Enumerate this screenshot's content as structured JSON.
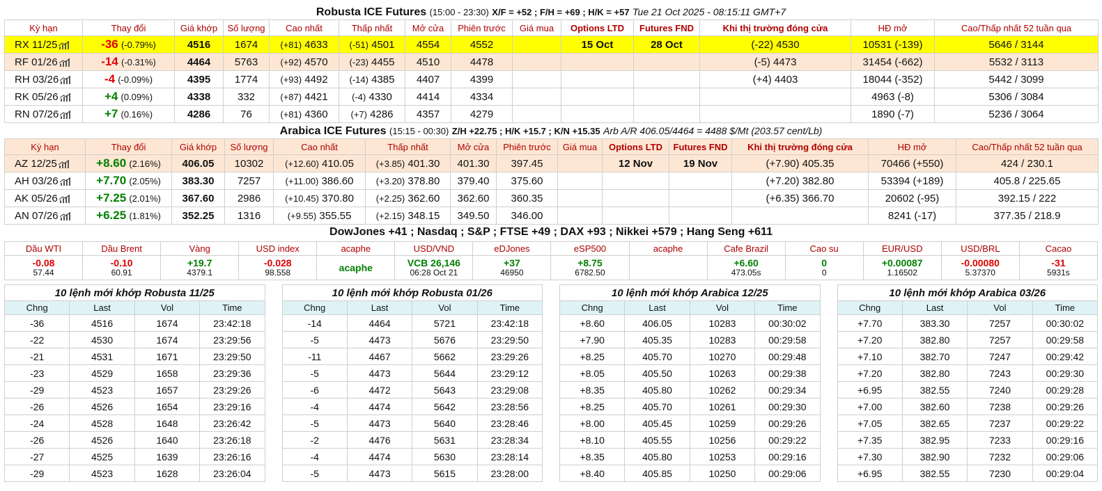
{
  "robusta": {
    "title": "Robusta ICE Futures",
    "session": "(15:00 - 23:30)",
    "spreads": "X/F = +52 ; F/H = +69 ; H/K = +57",
    "timestamp": "Tue 21 Oct 2025 - 08:15:11 GMT+7",
    "headers": [
      "Kỳ hạn",
      "Thay đổi",
      "Giá khớp",
      "Số lượng",
      "Cao nhất",
      "Thấp nhất",
      "Mở cửa",
      "Phiên trước",
      "Giá mua",
      "Options LTD",
      "Futures FND",
      "Khi thị trường đóng cửa",
      "HĐ mở",
      "Cao/Thấp nhất 52 tuần qua"
    ],
    "rows": [
      {
        "code": "RX 11/25",
        "chg": "-36",
        "pct": "(-0.79%)",
        "last": "4516",
        "vol": "1674",
        "high_d": "(+81)",
        "high": "4633",
        "low_d": "(-51)",
        "low": "4501",
        "open": "4554",
        "prev": "4552",
        "bid": "",
        "ltd": "15 Oct",
        "fnd": "28 Oct",
        "close": "(-22) 4530",
        "oi": "10531 (-139)",
        "range": "5646 / 3144",
        "dir": "neg"
      },
      {
        "code": "RF 01/26",
        "chg": "-14",
        "pct": "(-0.31%)",
        "last": "4464",
        "vol": "5763",
        "high_d": "(+92)",
        "high": "4570",
        "low_d": "(-23)",
        "low": "4455",
        "open": "4510",
        "prev": "4478",
        "bid": "",
        "ltd": "",
        "fnd": "",
        "close": "(-5) 4473",
        "oi": "31454 (-662)",
        "range": "5532 / 3113",
        "dir": "neg"
      },
      {
        "code": "RH 03/26",
        "chg": "-4",
        "pct": "(-0.09%)",
        "last": "4395",
        "vol": "1774",
        "high_d": "(+93)",
        "high": "4492",
        "low_d": "(-14)",
        "low": "4385",
        "open": "4407",
        "prev": "4399",
        "bid": "",
        "ltd": "",
        "fnd": "",
        "close": "(+4) 4403",
        "oi": "18044 (-352)",
        "range": "5442 / 3099",
        "dir": "neg"
      },
      {
        "code": "RK 05/26",
        "chg": "+4",
        "pct": "(0.09%)",
        "last": "4338",
        "vol": "332",
        "high_d": "(+87)",
        "high": "4421",
        "low_d": "(-4)",
        "low": "4330",
        "open": "4414",
        "prev": "4334",
        "bid": "",
        "ltd": "",
        "fnd": "",
        "close": "",
        "oi": "4963 (-8)",
        "range": "5306 / 3084",
        "dir": "pos"
      },
      {
        "code": "RN 07/26",
        "chg": "+7",
        "pct": "(0.16%)",
        "last": "4286",
        "vol": "76",
        "high_d": "(+81)",
        "high": "4360",
        "low_d": "(+7)",
        "low": "4286",
        "open": "4357",
        "prev": "4279",
        "bid": "",
        "ltd": "",
        "fnd": "",
        "close": "",
        "oi": "1890 (-7)",
        "range": "5236 / 3064",
        "dir": "pos"
      }
    ]
  },
  "arabica": {
    "title": "Arabica ICE Futures",
    "session": "(15:15 - 00:30)",
    "spreads": "Z/H +22.75 ; H/K +15.7 ; K/N +15.35",
    "arb": "Arb A/R 406.05/4464 = 4488 $/Mt (203.57 cent/Lb)",
    "headers": [
      "Kỳ hạn",
      "Thay đổi",
      "Giá khớp",
      "Số lượng",
      "Cao nhất",
      "Thấp nhất",
      "Mở cửa",
      "Phiên trước",
      "Giá mua",
      "Options LTD",
      "Futures FND",
      "Khi thị trường đóng cửa",
      "HĐ mở",
      "Cao/Thấp nhất 52 tuần qua"
    ],
    "rows": [
      {
        "code": "AZ 12/25",
        "chg": "+8.60",
        "pct": "(2.16%)",
        "last": "406.05",
        "vol": "10302",
        "high_d": "(+12.60)",
        "high": "410.05",
        "low_d": "(+3.85)",
        "low": "401.30",
        "open": "401.30",
        "prev": "397.45",
        "bid": "",
        "ltd": "12 Nov",
        "fnd": "19 Nov",
        "close": "(+7.90) 405.35",
        "oi": "70466 (+550)",
        "range": "424 / 230.1"
      },
      {
        "code": "AH 03/26",
        "chg": "+7.70",
        "pct": "(2.05%)",
        "last": "383.30",
        "vol": "7257",
        "high_d": "(+11.00)",
        "high": "386.60",
        "low_d": "(+3.20)",
        "low": "378.80",
        "open": "379.40",
        "prev": "375.60",
        "bid": "",
        "ltd": "",
        "fnd": "",
        "close": "(+7.20) 382.80",
        "oi": "53394 (+189)",
        "range": "405.8 / 225.65"
      },
      {
        "code": "AK 05/26",
        "chg": "+7.25",
        "pct": "(2.01%)",
        "last": "367.60",
        "vol": "2986",
        "high_d": "(+10.45)",
        "high": "370.80",
        "low_d": "(+2.25)",
        "low": "362.60",
        "open": "362.60",
        "prev": "360.35",
        "bid": "",
        "ltd": "",
        "fnd": "",
        "close": "(+6.35) 366.70",
        "oi": "20602 (-95)",
        "range": "392.15 / 222"
      },
      {
        "code": "AN 07/26",
        "chg": "+6.25",
        "pct": "(1.81%)",
        "last": "352.25",
        "vol": "1316",
        "high_d": "(+9.55)",
        "high": "355.55",
        "low_d": "(+2.15)",
        "low": "348.15",
        "open": "349.50",
        "prev": "346.00",
        "bid": "",
        "ltd": "",
        "fnd": "",
        "close": "",
        "oi": "8241 (-17)",
        "range": "377.35 / 218.9"
      }
    ]
  },
  "indices_line": "DowJones +41 ; Nasdaq ; S&P ; FTSE +49 ; DAX +93 ; Nikkei +579 ; Hang Seng +611",
  "markets": [
    {
      "name": "Dầu WTI",
      "v1": "-0.08",
      "v2": "57.44",
      "c": "red"
    },
    {
      "name": "Dầu Brent",
      "v1": "-0.10",
      "v2": "60.91",
      "c": "red"
    },
    {
      "name": "Vàng",
      "v1": "+19.7",
      "v2": "4379.1",
      "c": "grn"
    },
    {
      "name": "USD index",
      "v1": "-0.028",
      "v2": "98.558",
      "c": "red"
    },
    {
      "name": "acaphe",
      "v1": "acaphe",
      "v2": "",
      "c": "grn"
    },
    {
      "name": "USD/VND",
      "v1": "VCB 26,146",
      "v2": "06:28 Oct 21",
      "c": "grn"
    },
    {
      "name": "eDJones",
      "v1": "+37",
      "v2": "46950",
      "c": "grn"
    },
    {
      "name": "eSP500",
      "v1": "+8.75",
      "v2": "6782.50",
      "c": "grn"
    },
    {
      "name": "acaphe",
      "v1": "",
      "v2": "",
      "c": "grn"
    },
    {
      "name": "Cafe Brazil",
      "v1": "+6.60",
      "v2": "473.05s",
      "c": "grn"
    },
    {
      "name": "Cao su",
      "v1": "0",
      "v2": "0",
      "c": "grn"
    },
    {
      "name": "EUR/USD",
      "v1": "+0.00087",
      "v2": "1.16502",
      "c": "grn"
    },
    {
      "name": "USD/BRL",
      "v1": "-0.00080",
      "v2": "5.37370",
      "c": "red"
    },
    {
      "name": "Cacao",
      "v1": "-31",
      "v2": "5931s",
      "c": "red"
    }
  ],
  "trade_cols": [
    "Chng",
    "Last",
    "Vol",
    "Time"
  ],
  "trades": [
    {
      "title": "10 lệnh mới khớp Robusta 11/25",
      "rows": [
        [
          "-36",
          "4516",
          "1674",
          "23:42:18"
        ],
        [
          "-22",
          "4530",
          "1674",
          "23:29:56"
        ],
        [
          "-21",
          "4531",
          "1671",
          "23:29:50"
        ],
        [
          "-23",
          "4529",
          "1658",
          "23:29:36"
        ],
        [
          "-29",
          "4523",
          "1657",
          "23:29:26"
        ],
        [
          "-26",
          "4526",
          "1654",
          "23:29:16"
        ],
        [
          "-24",
          "4528",
          "1648",
          "23:26:42"
        ],
        [
          "-26",
          "4526",
          "1640",
          "23:26:18"
        ],
        [
          "-27",
          "4525",
          "1639",
          "23:26:16"
        ],
        [
          "-29",
          "4523",
          "1628",
          "23:26:04"
        ]
      ]
    },
    {
      "title": "10 lệnh mới khớp Robusta 01/26",
      "rows": [
        [
          "-14",
          "4464",
          "5721",
          "23:42:18"
        ],
        [
          "-5",
          "4473",
          "5676",
          "23:29:50"
        ],
        [
          "-11",
          "4467",
          "5662",
          "23:29:26"
        ],
        [
          "-5",
          "4473",
          "5644",
          "23:29:12"
        ],
        [
          "-6",
          "4472",
          "5643",
          "23:29:08"
        ],
        [
          "-4",
          "4474",
          "5642",
          "23:28:56"
        ],
        [
          "-5",
          "4473",
          "5640",
          "23:28:46"
        ],
        [
          "-2",
          "4476",
          "5631",
          "23:28:34"
        ],
        [
          "-4",
          "4474",
          "5630",
          "23:28:14"
        ],
        [
          "-5",
          "4473",
          "5615",
          "23:28:00"
        ]
      ]
    },
    {
      "title": "10 lệnh mới khớp Arabica 12/25",
      "rows": [
        [
          "+8.60",
          "406.05",
          "10283",
          "00:30:02"
        ],
        [
          "+7.90",
          "405.35",
          "10283",
          "00:29:58"
        ],
        [
          "+8.25",
          "405.70",
          "10270",
          "00:29:48"
        ],
        [
          "+8.05",
          "405.50",
          "10263",
          "00:29:38"
        ],
        [
          "+8.35",
          "405.80",
          "10262",
          "00:29:34"
        ],
        [
          "+8.25",
          "405.70",
          "10261",
          "00:29:30"
        ],
        [
          "+8.00",
          "405.45",
          "10259",
          "00:29:26"
        ],
        [
          "+8.10",
          "405.55",
          "10256",
          "00:29:22"
        ],
        [
          "+8.35",
          "405.80",
          "10253",
          "00:29:16"
        ],
        [
          "+8.40",
          "405.85",
          "10250",
          "00:29:06"
        ]
      ]
    },
    {
      "title": "10 lệnh mới khớp Arabica 03/26",
      "rows": [
        [
          "+7.70",
          "383.30",
          "7257",
          "00:30:02"
        ],
        [
          "+7.20",
          "382.80",
          "7257",
          "00:29:58"
        ],
        [
          "+7.10",
          "382.70",
          "7247",
          "00:29:42"
        ],
        [
          "+7.20",
          "382.80",
          "7243",
          "00:29:30"
        ],
        [
          "+6.95",
          "382.55",
          "7240",
          "00:29:28"
        ],
        [
          "+7.00",
          "382.60",
          "7238",
          "00:29:26"
        ],
        [
          "+7.05",
          "382.65",
          "7237",
          "00:29:22"
        ],
        [
          "+7.35",
          "382.95",
          "7233",
          "00:29:16"
        ],
        [
          "+7.30",
          "382.90",
          "7232",
          "00:29:06"
        ],
        [
          "+6.95",
          "382.55",
          "7230",
          "00:29:04"
        ]
      ]
    }
  ]
}
